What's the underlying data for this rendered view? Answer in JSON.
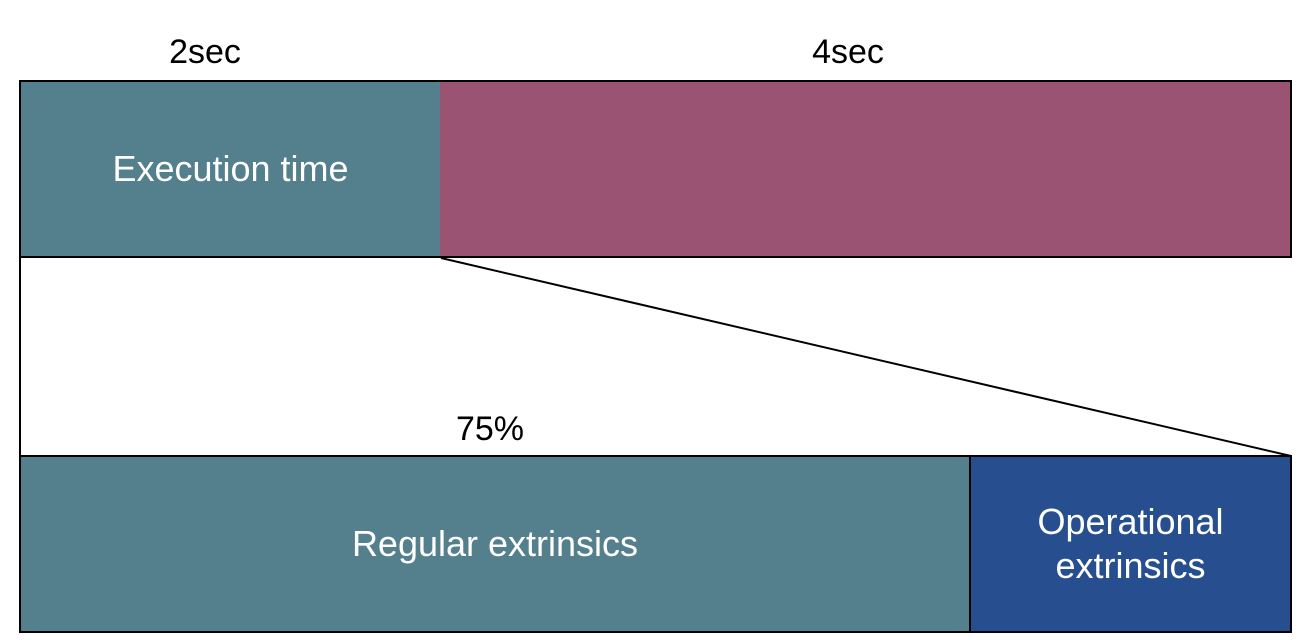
{
  "labels": {
    "top_left": "2sec",
    "top_right": "4sec",
    "percent": "75%"
  },
  "blocks": {
    "execution": "Execution time",
    "regular": "Regular extrinsics",
    "operational": "Operational\nextrinsics"
  },
  "colors": {
    "teal": "#547F8C",
    "magenta": "#9B5374",
    "blue": "#274F90",
    "border": "#000000"
  }
}
